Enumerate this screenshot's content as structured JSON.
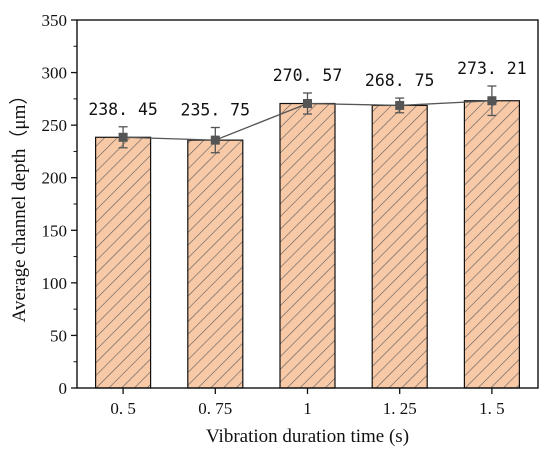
{
  "chart_data": {
    "type": "bar",
    "categories": [
      "0. 5",
      "0. 75",
      "1",
      "1. 25",
      "1. 5"
    ],
    "values": [
      238.45,
      235.75,
      270.57,
      268.75,
      273.21
    ],
    "data_labels": [
      "238. 45",
      "235. 75",
      "270. 57",
      "268. 75",
      "273. 21"
    ],
    "error": [
      10,
      12,
      10,
      7,
      14
    ],
    "overlay": "line with square markers and error bars",
    "xlabel": "Vibration duration time (s)",
    "ylabel": "Average channel depth（μm）",
    "ylim": [
      0,
      350
    ],
    "yticks": [
      0,
      50,
      100,
      150,
      200,
      250,
      300,
      350
    ],
    "grid": false,
    "colors": {
      "bar_fill": "#f8c9a7",
      "hatch": "#5a5a5a",
      "marker": "#555555",
      "line": "#555555"
    }
  }
}
